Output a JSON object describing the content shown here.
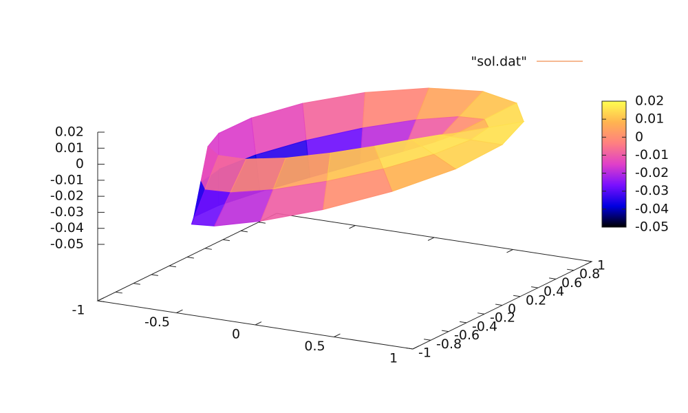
{
  "chart_data": {
    "type": "surface",
    "series": [
      {
        "name": "\"sol.dat\"",
        "color": "#f4a16d",
        "x": [
          [
            0.6,
            0.8,
            1
          ],
          [
            0.558,
            0.739,
            0.92
          ],
          [
            0.435,
            0.566,
            0.696
          ],
          [
            0.243,
            0.306,
            0.37
          ],
          [
            0,
            0,
            0
          ],
          [
            -0.264,
            -0.306,
            -0.349
          ],
          [
            -0.511,
            -0.566,
            -0.62
          ],
          [
            -0.703,
            -0.739,
            -0.775
          ],
          [
            -0.8,
            -0.8,
            -0.8
          ],
          [
            -0.775,
            -0.739,
            -0.703
          ],
          [
            -0.62,
            -0.566,
            -0.511
          ],
          [
            -0.349,
            -0.306,
            -0.264
          ],
          [
            0,
            0,
            0
          ],
          [
            0.37,
            0.306,
            0.243
          ],
          [
            0.696,
            0.566,
            0.435
          ],
          [
            0.92,
            0.739,
            0.558
          ],
          [
            1,
            0.8,
            0.6
          ]
        ],
        "y": [
          [
            0,
            0,
            0
          ],
          [
            0.231,
            0.306,
            0.381
          ],
          [
            0.435,
            0.566,
            0.696
          ],
          [
            0.586,
            0.739,
            0.893
          ],
          [
            0.659,
            0.8,
            0.941
          ],
          [
            0.637,
            0.739,
            0.842
          ],
          [
            0.511,
            0.566,
            0.62
          ],
          [
            0.291,
            0.306,
            0.321
          ],
          [
            0,
            0,
            0
          ],
          [
            -0.321,
            -0.306,
            -0.291
          ],
          [
            -0.62,
            -0.566,
            -0.511
          ],
          [
            -0.842,
            -0.739,
            -0.637
          ],
          [
            -0.941,
            -0.8,
            -0.659
          ],
          [
            -0.893,
            -0.739,
            -0.586
          ],
          [
            -0.696,
            -0.566,
            -0.435
          ],
          [
            -0.381,
            -0.306,
            -0.231
          ],
          [
            0,
            0,
            0
          ]
        ],
        "z": [
          [
            0.015,
            0.015,
            0.015
          ],
          [
            0.009,
            0.0134,
            0.0178
          ],
          [
            0.0002,
            0.0088,
            0.0174
          ],
          [
            -0.0106,
            0.0019,
            0.0144
          ],
          [
            -0.0221,
            -0.0063,
            0.0096
          ],
          [
            -0.0331,
            -0.0144,
            0.0043
          ],
          [
            -0.0421,
            -0.0213,
            -0.0005
          ],
          [
            -0.048,
            -0.0259,
            -0.0038
          ],
          [
            -0.05,
            -0.0275,
            -0.005
          ],
          [
            -0.048,
            -0.0259,
            -0.0038
          ],
          [
            -0.0421,
            -0.0213,
            -0.0005
          ],
          [
            -0.0331,
            -0.0144,
            0.0043
          ],
          [
            -0.0221,
            -0.0063,
            0.0096
          ],
          [
            -0.0106,
            0.0019,
            0.0144
          ],
          [
            0.0002,
            0.0088,
            0.0174
          ],
          [
            0.009,
            0.0134,
            0.0178
          ],
          [
            0.015,
            0.015,
            0.015
          ]
        ]
      }
    ],
    "xlim": [
      -1,
      1
    ],
    "ylim": [
      -1,
      1
    ],
    "zlim": [
      -0.05,
      0.02
    ],
    "xticks": [
      -1,
      -0.5,
      0,
      0.5,
      1
    ],
    "yticks": [
      -1,
      -0.8,
      -0.6,
      -0.4,
      -0.2,
      0,
      0.2,
      0.4,
      0.6,
      0.8,
      1
    ],
    "zticks": [
      0.02,
      0.01,
      0,
      -0.01,
      -0.02,
      -0.03,
      -0.04,
      -0.05
    ],
    "cblim": [
      -0.05,
      0.02
    ],
    "cbticks": [
      0.02,
      0.01,
      0,
      -0.01,
      -0.02,
      -0.03,
      -0.04,
      -0.05
    ],
    "palette": [
      "#000000",
      "#0000e0",
      "#7a10ff",
      "#e040c8",
      "#ff8080",
      "#ffb450",
      "#ffff50"
    ],
    "legend": "top-right"
  }
}
